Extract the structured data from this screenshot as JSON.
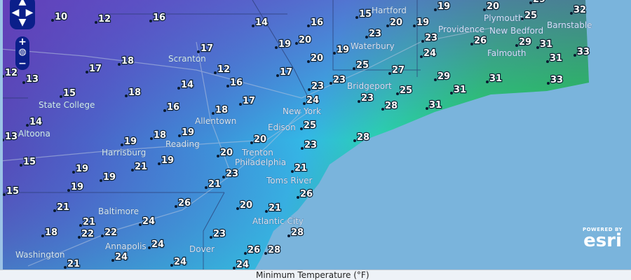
{
  "map": {
    "legend_title": "Minimum Temperature (°F)",
    "attribution": {
      "powered_by": "POWERED BY",
      "brand": "esri"
    },
    "colors": {
      "ocean": "#7ab4dc",
      "cold": "#5a3fb0",
      "mid": "#3fa0e0",
      "warm": "#22d46a"
    },
    "cities": [
      "State College",
      "Altoona",
      "Scranton",
      "Allentown",
      "Harrisburg",
      "Reading",
      "Trenton",
      "Edison",
      "New York",
      "Bridgeport",
      "Waterbury",
      "Hartford",
      "Providence",
      "Plymouth",
      "New Bedford",
      "Barnstable",
      "Falmouth",
      "Philadelphia",
      "Toms River",
      "Atlantic City",
      "Baltimore",
      "Annapolis",
      "Washington",
      "Dover"
    ],
    "temperatures": [
      10,
      12,
      16,
      14,
      16,
      15,
      20,
      19,
      20,
      29,
      32,
      25,
      12,
      13,
      17,
      18,
      17,
      12,
      19,
      20,
      19,
      23,
      19,
      23,
      26,
      29,
      31,
      33,
      24,
      31,
      15,
      18,
      14,
      16,
      17,
      20,
      25,
      27,
      23,
      23,
      29,
      31,
      33,
      31,
      25,
      23,
      24,
      28,
      31,
      16,
      18,
      17,
      14,
      13,
      19,
      18,
      19,
      20,
      25,
      23,
      28,
      20,
      15,
      19,
      19,
      21,
      19,
      23,
      21,
      21,
      19,
      15,
      26,
      26,
      20,
      21,
      28,
      21,
      21,
      24,
      18,
      22,
      22,
      23,
      24,
      26,
      28,
      24,
      21,
      24,
      24
    ]
  },
  "controls": {
    "pan": [
      "up",
      "left",
      "right",
      "down"
    ],
    "zoom_in": "+",
    "zoom_out": "−"
  }
}
